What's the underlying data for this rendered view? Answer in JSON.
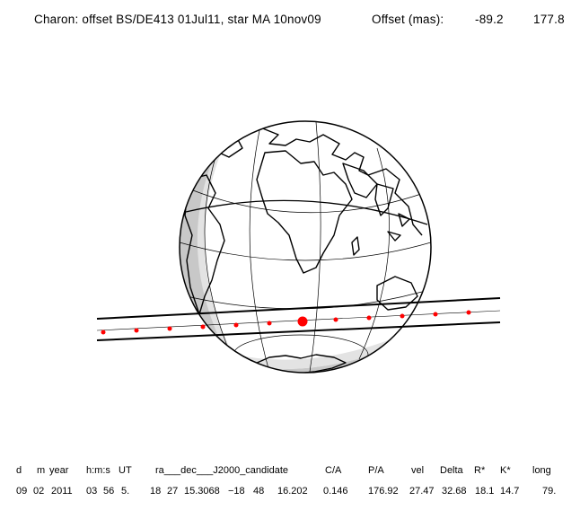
{
  "header": {
    "title": "Charon: offset BS/DE413 01Jul11, star MA 10nov09",
    "offset_label": "Offset (mas):",
    "offset_ra": "-89.2",
    "offset_dec": "177.8"
  },
  "table": {
    "columns": [
      "d",
      "m",
      "year",
      "h:m:s",
      "UT",
      "ra___dec___J2000_candidate",
      "C/A",
      "P/A",
      "vel",
      "Delta",
      "R*",
      "K*",
      "long"
    ],
    "values": [
      "09",
      "02",
      "2011",
      "03",
      "56",
      "5.",
      "18",
      "27",
      "15.3068",
      "−18",
      "48",
      "16.202",
      "0.146",
      "176.92",
      "27.47",
      "32.68",
      "18.1",
      "14.7",
      "79."
    ]
  },
  "colors": {
    "ink": "#000000",
    "marker": "#ff0000",
    "night_shade": "#c8c8c8",
    "twilight_shade": "#e3e3e3"
  }
}
